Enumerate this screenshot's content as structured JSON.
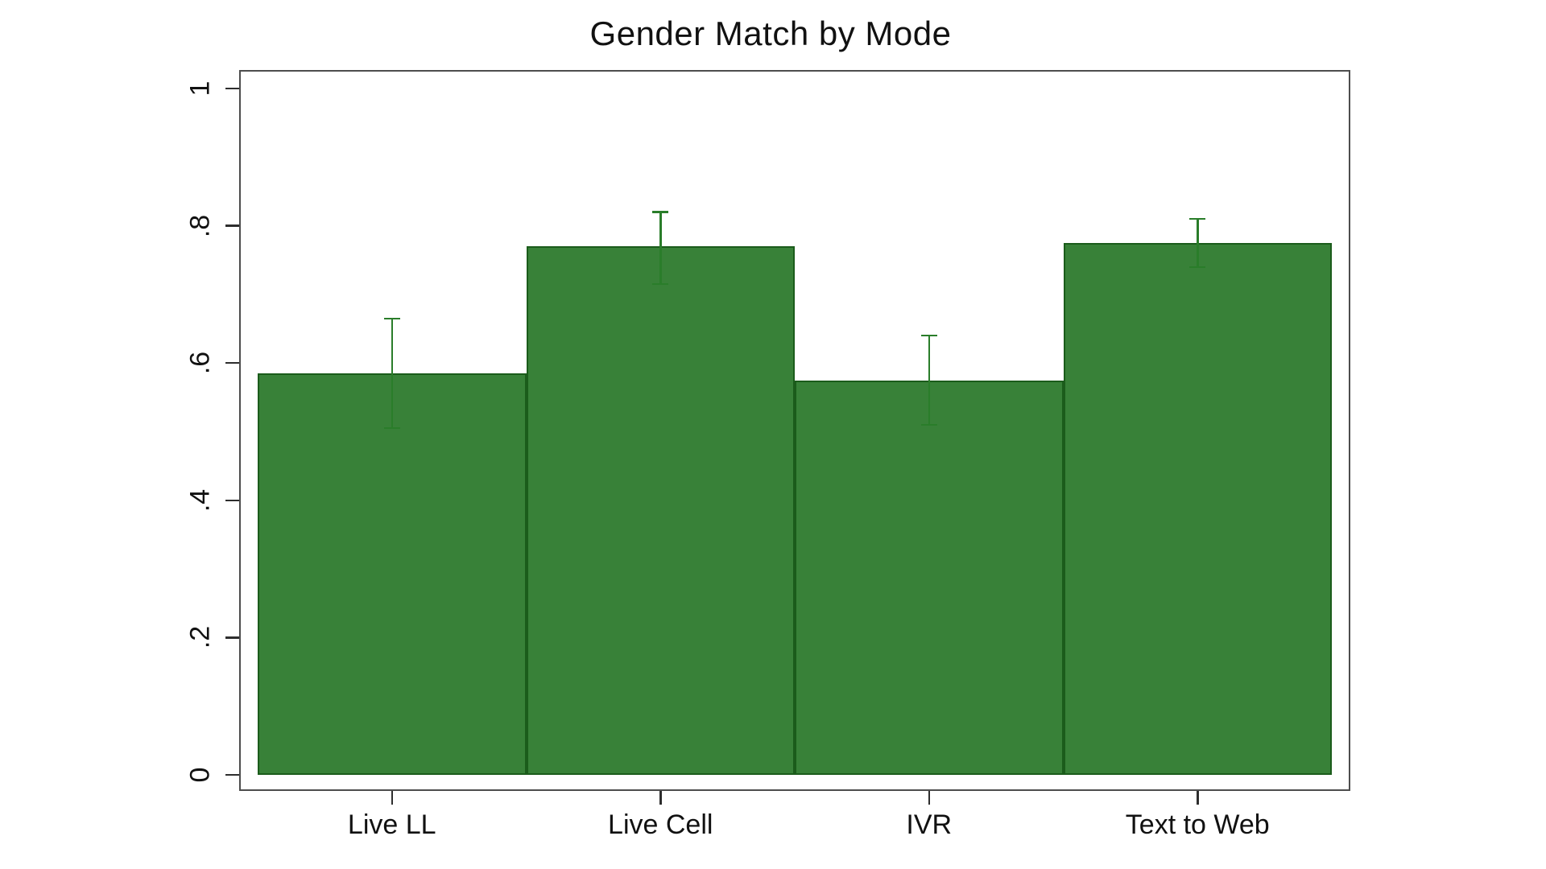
{
  "chart_data": {
    "type": "bar",
    "title": "Gender Match by Mode",
    "categories": [
      "Live LL",
      "Live Cell",
      "IVR",
      "Text to Web"
    ],
    "values": [
      0.585,
      0.77,
      0.575,
      0.775
    ],
    "error_low": [
      0.505,
      0.715,
      0.51,
      0.74
    ],
    "error_high": [
      0.665,
      0.82,
      0.64,
      0.81
    ],
    "xlabel": "",
    "ylabel": "",
    "ylim": [
      0,
      1
    ],
    "ytick_labels": [
      "0",
      ".2",
      ".4",
      ".6",
      ".8",
      "1"
    ],
    "ytick_values": [
      0,
      0.2,
      0.4,
      0.6,
      0.8,
      1
    ],
    "grid": false,
    "legend": null,
    "colors": {
      "bar_fill": "#388138",
      "bar_border": "#1b5c1b",
      "error_bar": "#2a7d2a",
      "frame": "#4d4d4d",
      "tick": "#2e2e2e",
      "text": "#111111",
      "background": "#ffffff"
    }
  }
}
